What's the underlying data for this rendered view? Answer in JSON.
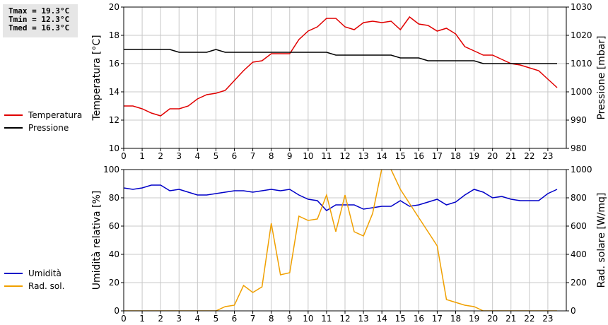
{
  "stats": {
    "tmax": "Tmax = 19.3°C",
    "tmin": "Tmin = 12.3°C",
    "tmed": "Tmed = 16.3°C"
  },
  "legend_top": [
    {
      "label": "Temperatura",
      "color": "#e00000"
    },
    {
      "label": "Pressione",
      "color": "#000000"
    }
  ],
  "legend_bottom": [
    {
      "label": "Umidità",
      "color": "#0000c8"
    },
    {
      "label": "Rad. sol.",
      "color": "#f0a000"
    }
  ],
  "chart_data": [
    {
      "type": "line",
      "x_ticks": [
        "0",
        "1",
        "2",
        "3",
        "4",
        "5",
        "6",
        "7",
        "8",
        "9",
        "10",
        "11",
        "12",
        "13",
        "14",
        "15",
        "16",
        "17",
        "18",
        "19",
        "20",
        "21",
        "22",
        "23"
      ],
      "xlim": [
        0,
        24
      ],
      "ylabel": "Temperatura [°C]",
      "ylim": [
        10,
        20
      ],
      "y_ticks": [
        "10",
        "12",
        "14",
        "16",
        "18",
        "20"
      ],
      "y2label": "Pressione [mbar]",
      "y2lim": [
        980,
        1030
      ],
      "y2_ticks": [
        "980",
        "990",
        "1000",
        "1010",
        "1020",
        "1030"
      ],
      "grid": true,
      "series": [
        {
          "name": "Temperatura",
          "axis": "left",
          "color": "#e00000",
          "x": [
            0,
            0.5,
            1,
            1.5,
            2,
            2.5,
            3,
            3.5,
            4,
            4.5,
            5,
            5.5,
            6,
            6.5,
            7,
            7.5,
            8,
            8.5,
            9,
            9.5,
            10,
            10.5,
            11,
            11.5,
            12,
            12.5,
            13,
            13.5,
            14,
            14.5,
            15,
            15.5,
            16,
            16.5,
            17,
            17.5,
            18,
            18.5,
            19,
            19.5,
            20,
            20.5,
            21,
            21.5,
            22,
            22.5,
            23,
            23.5
          ],
          "y": [
            13.0,
            13.0,
            12.8,
            12.5,
            12.3,
            12.8,
            12.8,
            13.0,
            13.5,
            13.8,
            13.9,
            14.1,
            14.8,
            15.5,
            16.1,
            16.2,
            16.7,
            16.7,
            16.7,
            17.7,
            18.3,
            18.6,
            19.2,
            19.2,
            18.6,
            18.4,
            18.9,
            19.0,
            18.9,
            19.0,
            18.4,
            19.3,
            18.8,
            18.7,
            18.3,
            18.5,
            18.1,
            17.2,
            16.9,
            16.6,
            16.6,
            16.3,
            16.0,
            15.9,
            15.7,
            15.5,
            14.9,
            14.3
          ]
        },
        {
          "name": "Pressione",
          "axis": "right",
          "color": "#000000",
          "x": [
            0,
            0.5,
            1,
            1.5,
            2,
            2.5,
            3,
            3.5,
            4,
            4.5,
            5,
            5.5,
            6,
            6.5,
            7,
            7.5,
            8,
            8.5,
            9,
            9.5,
            10,
            10.5,
            11,
            11.5,
            12,
            12.5,
            13,
            13.5,
            14,
            14.5,
            15,
            15.5,
            16,
            16.5,
            17,
            17.5,
            18,
            18.5,
            19,
            19.5,
            20,
            20.5,
            21,
            21.5,
            22,
            22.5,
            23,
            23.5
          ],
          "y": [
            1015,
            1015,
            1015,
            1015,
            1015,
            1015,
            1014,
            1014,
            1014,
            1014,
            1015,
            1014,
            1014,
            1014,
            1014,
            1014,
            1014,
            1014,
            1014,
            1014,
            1014,
            1014,
            1014,
            1013,
            1013,
            1013,
            1013,
            1013,
            1013,
            1013,
            1012,
            1012,
            1012,
            1011,
            1011,
            1011,
            1011,
            1011,
            1011,
            1010,
            1010,
            1010,
            1010,
            1010,
            1010,
            1010,
            1010,
            1010
          ]
        }
      ]
    },
    {
      "type": "line",
      "x_ticks": [
        "0",
        "1",
        "2",
        "3",
        "4",
        "5",
        "6",
        "7",
        "8",
        "9",
        "10",
        "11",
        "12",
        "13",
        "14",
        "15",
        "16",
        "17",
        "18",
        "19",
        "20",
        "21",
        "22",
        "23"
      ],
      "xlim": [
        0,
        24
      ],
      "ylabel": "Umidità relativa [%]",
      "ylim": [
        0,
        100
      ],
      "y_ticks": [
        "0",
        "20",
        "40",
        "60",
        "80",
        "100"
      ],
      "y2label": "Rad. solare [W/mq]",
      "y2lim": [
        0,
        1000
      ],
      "y2_ticks": [
        "0",
        "200",
        "400",
        "600",
        "800",
        "1000"
      ],
      "grid": true,
      "series": [
        {
          "name": "Umidità",
          "axis": "left",
          "color": "#0000c8",
          "x": [
            0,
            0.5,
            1,
            1.5,
            2,
            2.5,
            3,
            3.5,
            4,
            4.5,
            5,
            5.5,
            6,
            6.5,
            7,
            7.5,
            8,
            8.5,
            9,
            9.5,
            10,
            10.5,
            11,
            11.5,
            12,
            12.5,
            13,
            13.5,
            14,
            14.5,
            15,
            15.5,
            16,
            16.5,
            17,
            17.5,
            18,
            18.5,
            19,
            19.5,
            20,
            20.5,
            21,
            21.5,
            22,
            22.5,
            23,
            23.5
          ],
          "y": [
            87,
            86,
            87,
            89,
            89,
            85,
            86,
            84,
            82,
            82,
            83,
            84,
            85,
            85,
            84,
            85,
            86,
            85,
            86,
            82,
            79,
            78,
            71,
            75,
            75,
            75,
            72,
            73,
            74,
            74,
            78,
            74,
            75,
            77,
            79,
            75,
            77,
            82,
            86,
            84,
            80,
            81,
            79,
            78,
            78,
            78,
            83,
            86
          ]
        },
        {
          "name": "Rad. sol.",
          "axis": "right",
          "color": "#f0a000",
          "x": [
            0,
            0.5,
            1,
            1.5,
            2,
            2.5,
            3,
            3.5,
            4,
            4.5,
            5,
            5.5,
            6,
            6.5,
            7,
            7.5,
            8,
            8.5,
            9,
            9.5,
            10,
            10.5,
            11,
            11.5,
            12,
            12.5,
            13,
            13.5,
            14,
            14.5,
            15,
            15.5,
            16,
            16.5,
            17,
            17.5,
            18,
            18.5,
            19,
            19.5,
            20,
            20.5,
            21,
            21.5,
            22,
            22.5,
            23,
            23.5
          ],
          "y": [
            0,
            0,
            0,
            0,
            0,
            0,
            0,
            0,
            0,
            0,
            0,
            30,
            40,
            180,
            130,
            170,
            620,
            255,
            270,
            670,
            640,
            650,
            820,
            560,
            820,
            560,
            530,
            690,
            1010,
            1000,
            860,
            760,
            660,
            560,
            460,
            80,
            60,
            40,
            30,
            0,
            0,
            0,
            0,
            0,
            0,
            0,
            0,
            0
          ]
        }
      ]
    }
  ]
}
